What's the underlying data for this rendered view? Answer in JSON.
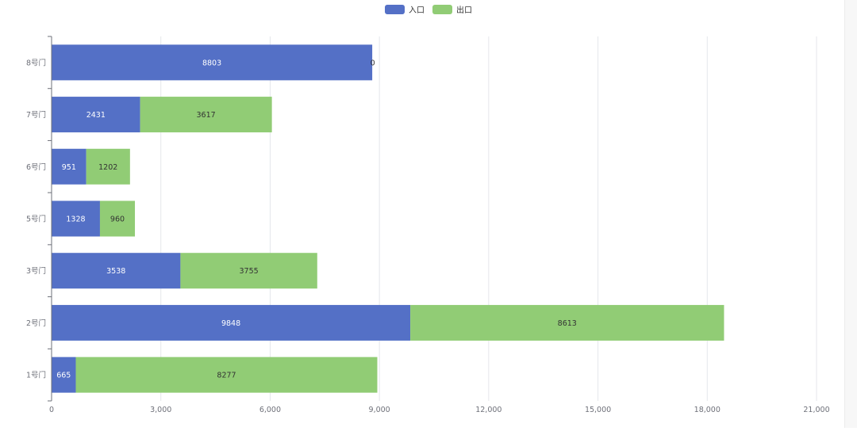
{
  "chart_data": {
    "type": "bar",
    "orientation": "horizontal",
    "stacked": true,
    "title": "",
    "xlabel": "",
    "ylabel": "",
    "categories": [
      "1号门",
      "2号门",
      "3号门",
      "5号门",
      "6号门",
      "7号门",
      "8号门"
    ],
    "series": [
      {
        "name": "入口",
        "color": "#5470c6",
        "label_color": "#ffffff",
        "values": [
          665,
          9848,
          3538,
          1328,
          951,
          2431,
          8803
        ]
      },
      {
        "name": "出口",
        "color": "#91cc75",
        "label_color": "#333333",
        "values": [
          8277,
          8613,
          3755,
          960,
          1202,
          3617,
          0
        ]
      }
    ],
    "xlim": [
      0,
      21000
    ],
    "x_ticks": [
      0,
      3000,
      6000,
      9000,
      12000,
      15000,
      18000,
      21000
    ],
    "x_tick_labels": [
      "0",
      "3,000",
      "6,000",
      "9,000",
      "12,000",
      "15,000",
      "18,000",
      "21,000"
    ],
    "grid": true,
    "legend_position": "top-center"
  }
}
